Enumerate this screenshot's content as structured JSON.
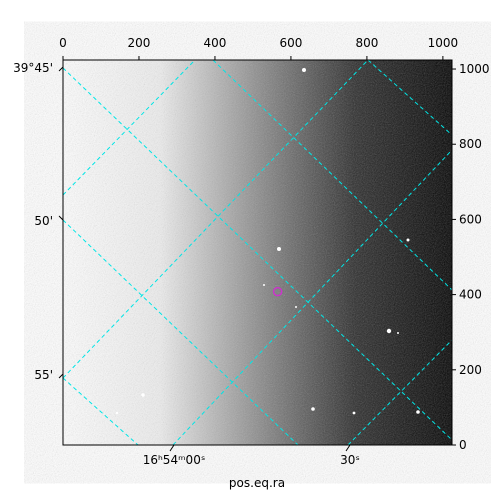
{
  "chart_data": {
    "type": "image",
    "xlabel": "pos.eq.ra",
    "xlim": [
      0,
      1024
    ],
    "ylim": [
      0,
      1024
    ],
    "xticks": [
      0,
      200,
      400,
      600,
      800,
      1000
    ],
    "yticks": [
      0,
      200,
      400,
      600,
      800,
      1000
    ],
    "ra_tick_labels": [
      "16ʰ54ᵐ00ˢ",
      "30ˢ"
    ],
    "dec_tick_labels": [
      "39°45'",
      "50'",
      "55'"
    ],
    "marker": {
      "x": 565,
      "y": 408,
      "color": "#cc33cc"
    }
  }
}
